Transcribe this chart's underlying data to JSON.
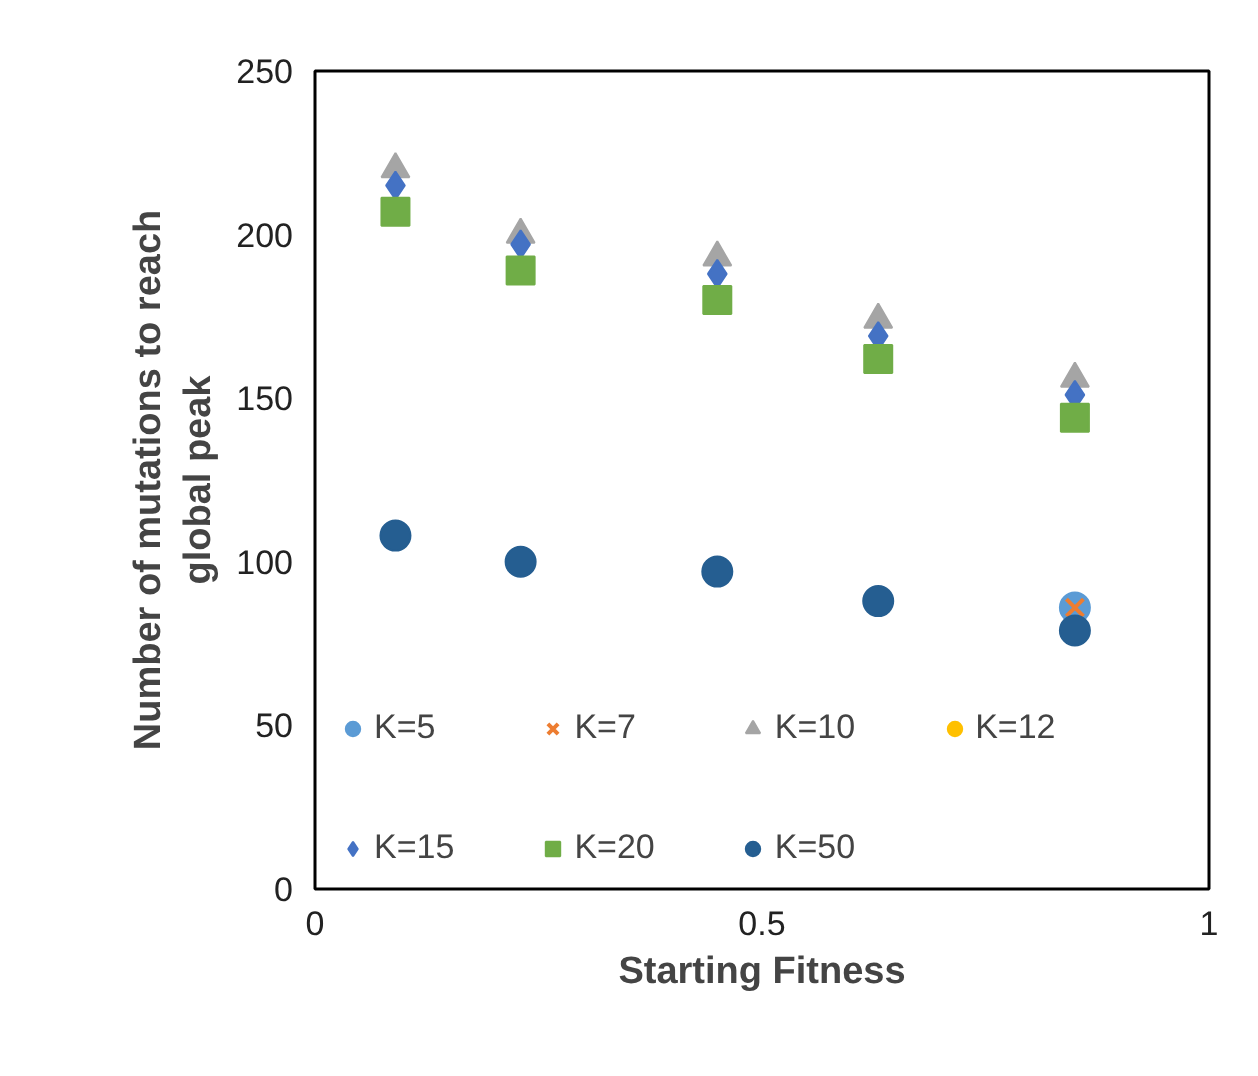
{
  "chart_data": {
    "type": "scatter",
    "xlabel": "Starting Fitness",
    "ylabel": "Number of mutations to reach\nglobal peak",
    "x": [
      0.09,
      0.23,
      0.45,
      0.63,
      0.85
    ],
    "xlim": [
      0,
      1
    ],
    "xticks": [
      0,
      0.5,
      1
    ],
    "ylim": [
      0,
      250
    ],
    "yticks": [
      0,
      50,
      100,
      150,
      200,
      250
    ],
    "grid": false,
    "legend": "bottom left",
    "series": [
      {
        "name": "K=5",
        "color": "#5b9bd5",
        "marker": "circle",
        "values": [
          null,
          null,
          null,
          null,
          86
        ]
      },
      {
        "name": "K=7",
        "color": "#ed7d31",
        "marker": "x",
        "values": [
          null,
          null,
          null,
          null,
          86
        ]
      },
      {
        "name": "K=10",
        "color": "#a5a5a5",
        "marker": "triangle",
        "values": [
          220,
          200,
          193,
          174,
          156
        ]
      },
      {
        "name": "K=12",
        "color": "#ffc000",
        "marker": "circle",
        "values": [
          null,
          null,
          null,
          null,
          null
        ]
      },
      {
        "name": "K=15",
        "color": "#4472c4",
        "marker": "diamond",
        "values": [
          215,
          197,
          188,
          169,
          151
        ]
      },
      {
        "name": "K=20",
        "color": "#70ad47",
        "marker": "square",
        "values": [
          207,
          189,
          180,
          162,
          144
        ]
      },
      {
        "name": "K=50",
        "color": "#255e91",
        "marker": "circle",
        "values": [
          108,
          100,
          97,
          88,
          79
        ]
      }
    ]
  }
}
